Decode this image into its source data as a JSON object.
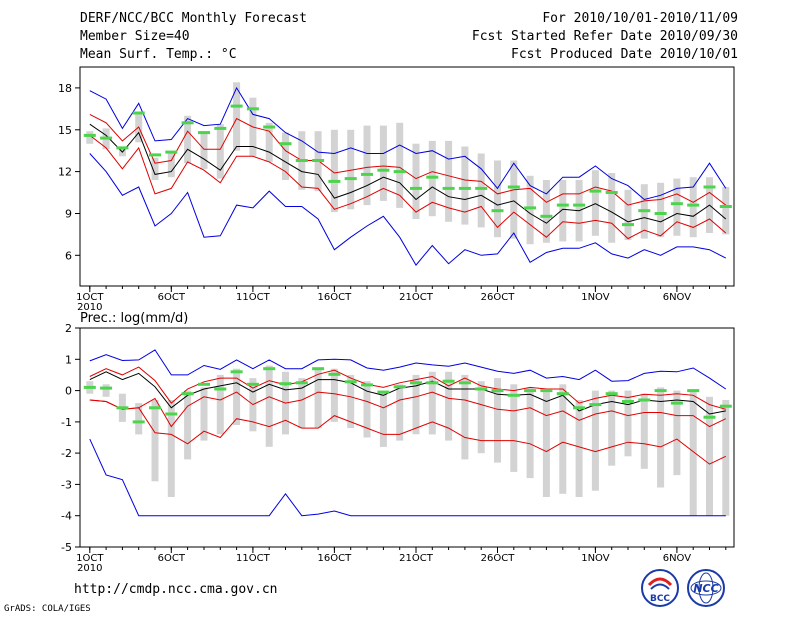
{
  "header": {
    "title": "DERF/NCC/BCC Monthly Forecast",
    "member_size": "Member Size=40",
    "variable1": "Mean Surf. Temp.: °C",
    "period": "For 2010/10/01-2010/11/09",
    "fcst_started": "Fcst Started Refer Date 2010/09/30",
    "fcst_produced": "Fcst Produced Date 2010/10/01"
  },
  "footer": {
    "url": "http://cmdp.ncc.cma.gov.cn",
    "grads": "GrADS: COLA/IGES",
    "logo_left_text": "BCC",
    "logo_right_text": "NCC"
  },
  "colors": {
    "mean": "#000000",
    "spread": "#e00000",
    "range": "#0000e0",
    "member_box": "#d3d3d3",
    "observed": "#4cd44c"
  },
  "chart_data": [
    {
      "type": "line",
      "title": "Mean Surf. Temp.: °C",
      "x_tick_labels": [
        "1OCT",
        "6OCT",
        "11OCT",
        "16OCT",
        "21OCT",
        "26OCT",
        "1NOV",
        "6NOV"
      ],
      "x_tick_days": [
        1,
        6,
        11,
        16,
        21,
        26,
        32,
        37
      ],
      "x_sublabel": "2010",
      "xlim": [
        1,
        40
      ],
      "ylim": [
        3.8,
        19.5
      ],
      "y_ticks": [
        6,
        9,
        12,
        15,
        18
      ],
      "days": [
        1,
        2,
        3,
        4,
        5,
        6,
        7,
        8,
        9,
        10,
        11,
        12,
        13,
        14,
        15,
        16,
        17,
        18,
        19,
        20,
        21,
        22,
        23,
        24,
        25,
        26,
        27,
        28,
        29,
        30,
        31,
        32,
        33,
        34,
        35,
        36,
        37,
        38,
        39,
        40
      ],
      "series": [
        {
          "name": "max",
          "values": [
            17.8,
            17.2,
            15.1,
            16.9,
            14.2,
            14.3,
            15.8,
            15.3,
            15.4,
            18.0,
            16.1,
            15.8,
            14.8,
            14.2,
            13.4,
            13.3,
            13.7,
            13.3,
            13.3,
            13.9,
            13.3,
            13.5,
            12.9,
            13.1,
            12.2,
            10.8,
            12.6,
            11.0,
            10.4,
            11.6,
            11.6,
            12.4,
            11.5,
            11.0,
            10.0,
            10.3,
            10.8,
            10.9,
            12.6,
            10.8
          ]
        },
        {
          "name": "upper",
          "values": [
            16.1,
            15.5,
            14.2,
            15.2,
            12.6,
            12.8,
            14.9,
            13.6,
            13.6,
            15.8,
            15.2,
            14.9,
            13.5,
            12.8,
            12.8,
            11.9,
            12.1,
            12.3,
            12.4,
            12.3,
            11.5,
            12.0,
            11.7,
            11.4,
            11.3,
            10.4,
            10.7,
            10.8,
            9.8,
            10.4,
            10.4,
            10.9,
            10.6,
            9.6,
            9.9,
            10.0,
            10.4,
            9.8,
            10.5,
            9.6
          ]
        },
        {
          "name": "mean",
          "values": [
            15.4,
            14.6,
            13.4,
            14.8,
            11.8,
            12.0,
            13.6,
            12.9,
            12.1,
            13.8,
            13.8,
            13.4,
            12.7,
            12.0,
            11.8,
            10.1,
            10.5,
            11.0,
            11.6,
            11.2,
            10.0,
            10.9,
            10.2,
            10.0,
            10.3,
            9.6,
            9.9,
            9.0,
            8.3,
            9.3,
            9.2,
            9.7,
            9.1,
            8.4,
            8.7,
            8.4,
            9.0,
            8.8,
            9.6,
            8.6
          ]
        },
        {
          "name": "lower",
          "values": [
            14.6,
            13.7,
            12.2,
            13.7,
            10.4,
            10.8,
            12.7,
            12.1,
            11.2,
            13.1,
            13.1,
            12.7,
            12.0,
            10.9,
            10.8,
            9.3,
            9.7,
            10.2,
            10.8,
            10.3,
            9.1,
            9.8,
            9.4,
            9.1,
            9.5,
            8.0,
            9.1,
            8.2,
            7.3,
            8.4,
            8.3,
            8.5,
            8.3,
            7.2,
            7.8,
            7.4,
            8.4,
            8.0,
            8.6,
            7.6
          ]
        },
        {
          "name": "min",
          "values": [
            13.3,
            12.0,
            10.3,
            10.9,
            8.1,
            9.0,
            10.5,
            7.3,
            7.4,
            9.6,
            9.4,
            10.6,
            9.5,
            9.5,
            8.6,
            6.4,
            7.3,
            8.1,
            8.8,
            7.3,
            5.3,
            6.7,
            5.4,
            6.4,
            6.0,
            6.1,
            7.6,
            5.5,
            6.2,
            6.5,
            6.5,
            6.9,
            6.1,
            5.8,
            6.4,
            6.0,
            6.6,
            6.6,
            6.4,
            5.8
          ]
        },
        {
          "name": "observed",
          "values": [
            14.6,
            14.4,
            13.7,
            16.2,
            13.2,
            13.4,
            15.5,
            14.8,
            15.1,
            16.7,
            16.5,
            15.2,
            14.0,
            12.8,
            12.8,
            11.3,
            11.5,
            11.8,
            12.1,
            12.0,
            10.8,
            11.6,
            10.8,
            10.8,
            10.8,
            9.2,
            10.9,
            9.4,
            8.8,
            9.6,
            9.6,
            10.6,
            10.5,
            8.2,
            9.2,
            9.0,
            9.7,
            9.6,
            10.9,
            9.5
          ]
        }
      ],
      "boxes": {
        "low": [
          14.0,
          13.6,
          13.1,
          14.1,
          11.4,
          11.6,
          12.6,
          12.2,
          11.5,
          13.5,
          13.1,
          12.7,
          11.4,
          10.7,
          10.6,
          9.1,
          9.3,
          9.6,
          9.9,
          9.4,
          8.6,
          8.8,
          8.4,
          8.2,
          8.0,
          7.3,
          7.2,
          6.8,
          6.9,
          7.0,
          7.0,
          7.4,
          6.9,
          7.1,
          7.2,
          7.3,
          7.4,
          7.3,
          7.6,
          7.5
        ],
        "high": [
          14.9,
          15.1,
          13.8,
          16.3,
          13.0,
          13.5,
          16.0,
          14.9,
          15.4,
          18.4,
          17.3,
          15.5,
          14.8,
          14.9,
          14.9,
          15.0,
          15.0,
          15.3,
          15.3,
          15.5,
          14.0,
          14.2,
          14.2,
          13.8,
          13.3,
          12.8,
          12.8,
          11.7,
          11.4,
          11.4,
          11.4,
          12.1,
          11.9,
          10.7,
          11.1,
          11.2,
          11.5,
          11.6,
          11.6,
          10.9
        ]
      }
    },
    {
      "type": "line",
      "title": "Prec.: log(mm/d)",
      "x_tick_labels": [
        "1OCT",
        "6OCT",
        "11OCT",
        "16OCT",
        "21OCT",
        "26OCT",
        "1NOV",
        "6NOV"
      ],
      "x_tick_days": [
        1,
        6,
        11,
        16,
        21,
        26,
        32,
        37
      ],
      "x_sublabel": "2010",
      "xlim": [
        1,
        40
      ],
      "ylim": [
        -5,
        2
      ],
      "y_ticks": [
        -5,
        -4,
        -3,
        -2,
        -1,
        0,
        1,
        2
      ],
      "days": [
        1,
        2,
        3,
        4,
        5,
        6,
        7,
        8,
        9,
        10,
        11,
        12,
        13,
        14,
        15,
        16,
        17,
        18,
        19,
        20,
        21,
        22,
        23,
        24,
        25,
        26,
        27,
        28,
        29,
        30,
        31,
        32,
        33,
        34,
        35,
        36,
        37,
        38,
        39,
        40
      ],
      "series": [
        {
          "name": "max",
          "values": [
            0.95,
            1.15,
            0.96,
            0.98,
            1.3,
            0.5,
            0.5,
            0.8,
            0.68,
            0.98,
            0.7,
            0.98,
            0.7,
            0.7,
            0.98,
            1.0,
            0.98,
            0.72,
            0.65,
            0.75,
            0.88,
            0.82,
            0.78,
            0.88,
            0.75,
            0.62,
            0.55,
            0.65,
            0.4,
            0.45,
            0.35,
            0.65,
            0.3,
            0.32,
            0.55,
            0.62,
            0.6,
            0.72,
            0.4,
            0.05
          ]
        },
        {
          "name": "upper",
          "values": [
            0.45,
            0.7,
            0.5,
            0.75,
            0.32,
            -0.4,
            0.05,
            0.28,
            0.4,
            0.4,
            0.08,
            0.32,
            0.18,
            0.28,
            0.52,
            0.65,
            0.4,
            0.2,
            0.1,
            0.25,
            0.35,
            0.45,
            0.15,
            0.4,
            0.15,
            0.05,
            0.0,
            0.1,
            0.05,
            0.05,
            -0.4,
            -0.25,
            -0.15,
            -0.22,
            -0.12,
            -0.15,
            -0.1,
            -0.15,
            -0.45,
            -0.6
          ]
        },
        {
          "name": "mean",
          "values": [
            0.35,
            0.6,
            0.35,
            0.55,
            0.12,
            -0.55,
            -0.15,
            0.05,
            0.15,
            0.25,
            -0.05,
            0.2,
            0.02,
            0.08,
            0.35,
            0.35,
            0.25,
            -0.02,
            -0.15,
            0.08,
            0.15,
            0.3,
            0.05,
            0.05,
            0.05,
            -0.12,
            -0.15,
            -0.12,
            -0.35,
            -0.15,
            -0.65,
            -0.45,
            -0.35,
            -0.45,
            -0.3,
            -0.35,
            -0.3,
            -0.35,
            -0.75,
            -0.65
          ]
        },
        {
          "name": "lower",
          "values": [
            -0.3,
            -0.35,
            -0.6,
            -0.55,
            -0.25,
            -1.15,
            -0.5,
            -0.2,
            -0.3,
            -0.05,
            -0.45,
            -0.2,
            -0.4,
            -0.3,
            -0.05,
            -0.1,
            -0.2,
            -0.35,
            -0.55,
            -0.3,
            -0.2,
            -0.05,
            -0.25,
            -0.3,
            -0.45,
            -0.6,
            -0.65,
            -0.55,
            -0.8,
            -0.65,
            -0.95,
            -0.75,
            -0.65,
            -0.8,
            -0.7,
            -0.7,
            -0.8,
            -0.8,
            -1.15,
            -0.9
          ]
        },
        {
          "name": "lowest",
          "values": [
            -0.3,
            -0.35,
            -0.6,
            -0.55,
            -1.35,
            -1.4,
            -1.7,
            -1.3,
            -1.5,
            -0.9,
            -1.0,
            -1.15,
            -0.95,
            -1.2,
            -1.2,
            -0.8,
            -1.0,
            -1.2,
            -1.4,
            -1.4,
            -1.2,
            -1.0,
            -1.2,
            -1.5,
            -1.6,
            -1.6,
            -1.6,
            -1.7,
            -1.95,
            -1.65,
            -1.8,
            -1.95,
            -1.8,
            -1.65,
            -1.7,
            -1.8,
            -1.55,
            -1.95,
            -2.35,
            -2.1
          ]
        },
        {
          "name": "min",
          "values": [
            -1.55,
            -2.7,
            -2.85,
            -4.0,
            -4.0,
            -4.0,
            -4.0,
            -4.0,
            -4.0,
            -4.0,
            -4.0,
            -4.0,
            -3.3,
            -4.0,
            -3.95,
            -3.85,
            -4.0,
            -4.0,
            -4.0,
            -4.0,
            -4.0,
            -4.0,
            -4.0,
            -4.0,
            -4.0,
            -4.0,
            -4.0,
            -4.0,
            -4.0,
            -4.0,
            -4.0,
            -4.0,
            -4.0,
            -4.0,
            -4.0,
            -4.0,
            -4.0,
            -4.0,
            -4.0,
            -4.0
          ]
        },
        {
          "name": "observed",
          "values": [
            0.1,
            0.08,
            -0.55,
            -1.0,
            -0.55,
            -0.75,
            -0.1,
            0.2,
            0.05,
            0.6,
            0.2,
            0.7,
            0.22,
            0.25,
            0.7,
            0.52,
            0.28,
            0.18,
            -0.05,
            0.12,
            0.25,
            0.25,
            0.3,
            0.25,
            0.05,
            0.0,
            -0.15,
            0.0,
            0.0,
            -0.1,
            -0.55,
            -0.45,
            -0.1,
            -0.35,
            -0.3,
            0.0,
            -0.4,
            0.0,
            -0.85,
            -0.5
          ]
        }
      ],
      "boxes": {
        "low": [
          -0.1,
          -0.2,
          -1.0,
          -1.4,
          -2.9,
          -3.4,
          -2.2,
          -1.6,
          -1.4,
          -1.1,
          -1.3,
          -1.8,
          -1.4,
          -1.2,
          -1.2,
          -1.0,
          -1.2,
          -1.5,
          -1.8,
          -1.6,
          -1.4,
          -1.4,
          -1.6,
          -2.2,
          -2.0,
          -2.3,
          -2.6,
          -2.8,
          -3.4,
          -3.3,
          -3.4,
          -3.2,
          -2.4,
          -2.1,
          -2.5,
          -3.1,
          -2.7,
          -4.0,
          -4.0,
          -4.0
        ],
        "high": [
          0.3,
          0.2,
          -0.1,
          -0.4,
          -0.3,
          -0.3,
          0.0,
          0.1,
          0.5,
          0.7,
          0.4,
          0.8,
          0.6,
          0.4,
          0.7,
          0.7,
          0.5,
          0.3,
          0.0,
          0.2,
          0.5,
          0.6,
          0.6,
          0.5,
          0.3,
          0.4,
          0.2,
          0.1,
          0.0,
          0.2,
          -0.3,
          0.0,
          0.0,
          0.0,
          -0.1,
          0.1,
          0.0,
          0.0,
          -0.2,
          -0.3
        ]
      }
    }
  ]
}
